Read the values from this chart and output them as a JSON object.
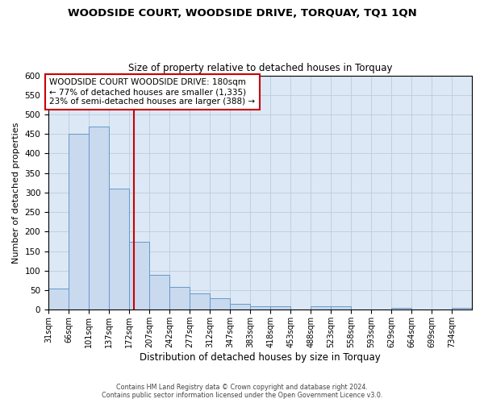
{
  "title": "WOODSIDE COURT, WOODSIDE DRIVE, TORQUAY, TQ1 1QN",
  "subtitle": "Size of property relative to detached houses in Torquay",
  "xlabel": "Distribution of detached houses by size in Torquay",
  "ylabel": "Number of detached properties",
  "bar_edges": [
    31,
    66,
    101,
    137,
    172,
    207,
    242,
    277,
    312,
    347,
    383,
    418,
    453,
    488,
    523,
    558,
    593,
    629,
    664,
    699,
    734
  ],
  "bar_heights": [
    55,
    450,
    470,
    310,
    175,
    90,
    58,
    42,
    30,
    15,
    8,
    8,
    0,
    8,
    8,
    0,
    0,
    5,
    0,
    0,
    5
  ],
  "bar_color": "#c9d9ee",
  "bar_edge_color": "#6699cc",
  "vline_color": "#cc0000",
  "vline_x": 180,
  "annotation_text": "WOODSIDE COURT WOODSIDE DRIVE: 180sqm\n← 77% of detached houses are smaller (1,335)\n23% of semi-detached houses are larger (388) →",
  "annotation_box_color": "#ffffff",
  "annotation_box_edge": "#cc0000",
  "ylim": [
    0,
    600
  ],
  "yticks": [
    0,
    50,
    100,
    150,
    200,
    250,
    300,
    350,
    400,
    450,
    500,
    550,
    600
  ],
  "tick_labels": [
    "31sqm",
    "66sqm",
    "101sqm",
    "137sqm",
    "172sqm",
    "207sqm",
    "242sqm",
    "277sqm",
    "312sqm",
    "347sqm",
    "383sqm",
    "418sqm",
    "453sqm",
    "488sqm",
    "523sqm",
    "558sqm",
    "593sqm",
    "629sqm",
    "664sqm",
    "699sqm",
    "734sqm"
  ],
  "footer1": "Contains HM Land Registry data © Crown copyright and database right 2024.",
  "footer2": "Contains public sector information licensed under the Open Government Licence v3.0.",
  "grid_color": "#bbccdd",
  "bg_color": "#dce8f5",
  "fig_bg_color": "#ffffff"
}
